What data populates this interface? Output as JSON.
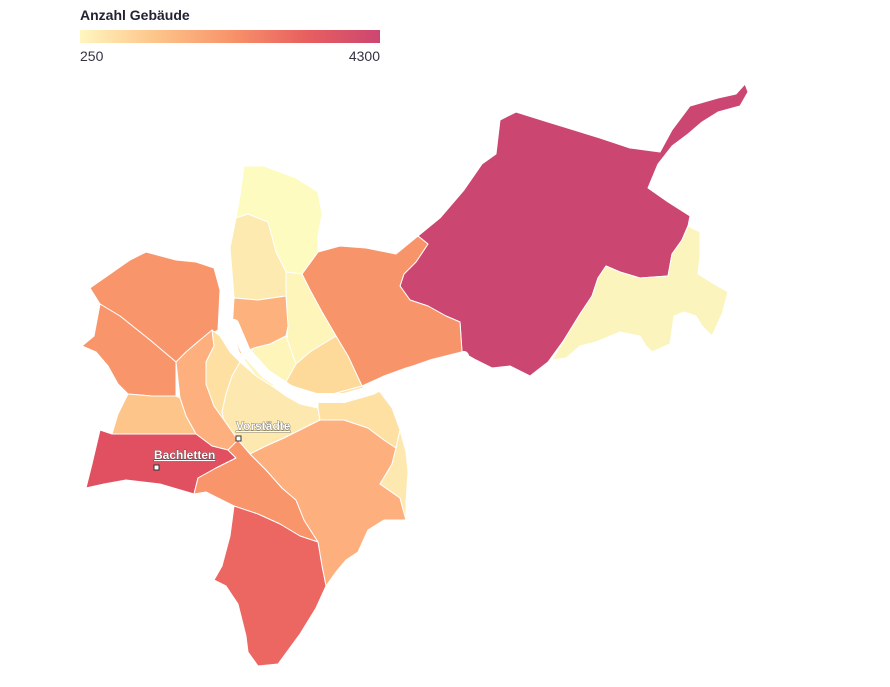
{
  "legend": {
    "title": "Anzahl Gebäude",
    "min_label": "250",
    "max_label": "4300",
    "min": 250,
    "max": 4300,
    "colors": [
      "#fff6bf",
      "#fdc58a",
      "#f8946a",
      "#e8605f",
      "#cc4672"
    ]
  },
  "labels": {
    "vorstaedte": "Vorstädte",
    "bachletten": "Bachletten"
  },
  "district_colors": {
    "riehen_bettingen": "#cc4672",
    "hirzbrunnen": "#f8946a",
    "east_light": "#fbf4bd",
    "kleinhueningen": "#fdfbbf",
    "klybeck": "#fdeab0",
    "matthaeus": "#fdb27e",
    "rosental": "#fdf5b9",
    "clara": "#fdd99a",
    "wettstein": "#fdd99a",
    "st_johann": "#f9956a",
    "iselin": "#f9956a",
    "altstadt_gross": "#fde0a2",
    "altstadt_klein": "#fdd49a",
    "vorstaedte": "#fde9b0",
    "am_ring": "#fdb07e",
    "gotthelf": "#fdc58a",
    "bachletten": "#e05060",
    "gundeldingen": "#fdb07e",
    "st_alban": "#fde0a2",
    "breite": "#fde9b0",
    "bruderholz": "#ec6662",
    "gundeli_west": "#f9956a"
  }
}
